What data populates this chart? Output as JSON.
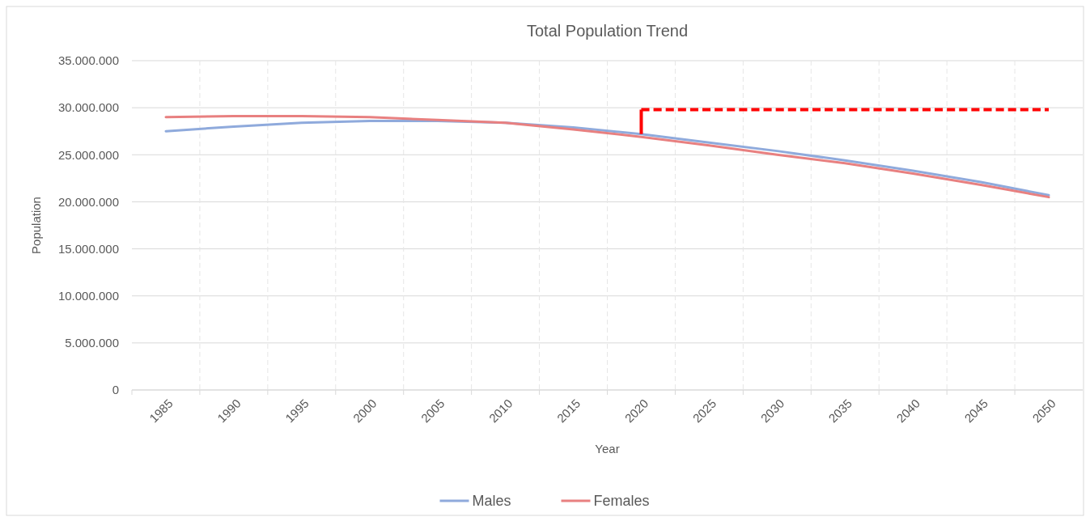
{
  "chart_data": {
    "type": "line",
    "title": "Total Population Trend",
    "xlabel": "Year",
    "ylabel": "Population",
    "categories": [
      "1985",
      "1990",
      "1995",
      "2000",
      "2005",
      "2010",
      "2015",
      "2020",
      "2025",
      "2030",
      "2035",
      "2040",
      "2045",
      "2050"
    ],
    "series": [
      {
        "name": "Males",
        "color": "#8faadc",
        "values": [
          27500000,
          28000000,
          28400000,
          28600000,
          28600000,
          28400000,
          27900000,
          27200000,
          26300000,
          25400000,
          24400000,
          23300000,
          22100000,
          20700000
        ]
      },
      {
        "name": "Females",
        "color": "#e88080",
        "values": [
          29000000,
          29100000,
          29100000,
          29000000,
          28700000,
          28400000,
          27700000,
          26900000,
          26000000,
          25000000,
          24100000,
          23000000,
          21800000,
          20500000
        ]
      },
      {
        "type": "line",
        "color": "#ff0000",
        "line_style": "dashed",
        "values": [
          null,
          null,
          null,
          null,
          null,
          null,
          null,
          29800000,
          29800000,
          29800000,
          29800000,
          29800000,
          29800000,
          29800000
        ]
      }
    ],
    "ylim": [
      0,
      35000000
    ],
    "yticks": [
      {
        "value": 0,
        "label": "0"
      },
      {
        "value": 5000000,
        "label": "5.000.000"
      },
      {
        "value": 10000000,
        "label": "10.000.000"
      },
      {
        "value": 15000000,
        "label": "15.000.000"
      },
      {
        "value": 20000000,
        "label": "20.000.000"
      },
      {
        "value": 25000000,
        "label": "25.000.000"
      },
      {
        "value": 30000000,
        "label": "30.000.000"
      },
      {
        "value": 35000000,
        "label": "35.000.000"
      }
    ],
    "grid": true,
    "legend": "bottom",
    "marker": "none",
    "line_style": "solid"
  }
}
